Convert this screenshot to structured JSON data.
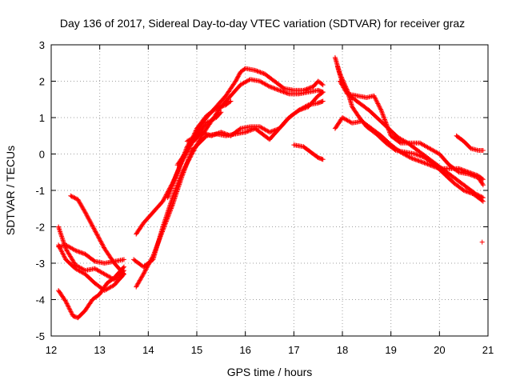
{
  "chart_data": {
    "type": "scatter",
    "title": "Day 136 of 2017, Sidereal Day-to-day VTEC variation (SDTVAR) for receiver graz",
    "xlabel": "GPS time / hours",
    "ylabel": "SDTVAR / TECUs",
    "xlim": [
      12,
      21
    ],
    "ylim": [
      -5,
      3
    ],
    "xticks": [
      12,
      13,
      14,
      15,
      16,
      17,
      18,
      19,
      20,
      21
    ],
    "yticks": [
      -5,
      -4,
      -3,
      -2,
      -1,
      0,
      1,
      2,
      3
    ],
    "grid": true,
    "marker": "+",
    "color": "#ff0000",
    "series": [
      {
        "name": "track-1",
        "points": [
          [
            12.15,
            -3.75
          ],
          [
            12.3,
            -4.05
          ],
          [
            12.45,
            -4.45
          ],
          [
            12.55,
            -4.5
          ],
          [
            12.7,
            -4.3
          ],
          [
            12.85,
            -4.0
          ],
          [
            13.0,
            -3.85
          ],
          [
            13.15,
            -3.55
          ],
          [
            13.3,
            -3.4
          ],
          [
            13.5,
            -3.1
          ]
        ]
      },
      {
        "name": "track-2",
        "points": [
          [
            12.15,
            -2.0
          ],
          [
            12.3,
            -2.6
          ],
          [
            12.5,
            -3.05
          ],
          [
            12.7,
            -3.2
          ],
          [
            12.9,
            -3.15
          ],
          [
            13.1,
            -3.3
          ],
          [
            13.3,
            -3.45
          ],
          [
            13.5,
            -3.2
          ]
        ]
      },
      {
        "name": "track-3",
        "points": [
          [
            12.15,
            -2.55
          ],
          [
            12.3,
            -2.5
          ],
          [
            12.5,
            -2.65
          ],
          [
            12.7,
            -2.75
          ],
          [
            12.9,
            -2.95
          ],
          [
            13.1,
            -3.0
          ],
          [
            13.3,
            -2.95
          ],
          [
            13.5,
            -2.9
          ]
        ]
      },
      {
        "name": "track-4",
        "points": [
          [
            12.15,
            -2.5
          ],
          [
            12.3,
            -2.9
          ],
          [
            12.5,
            -3.15
          ],
          [
            12.7,
            -3.3
          ],
          [
            12.9,
            -3.55
          ],
          [
            13.1,
            -3.75
          ],
          [
            13.3,
            -3.6
          ],
          [
            13.5,
            -3.3
          ]
        ]
      },
      {
        "name": "track-5",
        "points": [
          [
            12.4,
            -1.15
          ],
          [
            12.55,
            -1.25
          ],
          [
            12.7,
            -1.6
          ],
          [
            12.9,
            -2.1
          ],
          [
            13.1,
            -2.6
          ],
          [
            13.3,
            -3.0
          ],
          [
            13.5,
            -3.3
          ]
        ]
      },
      {
        "name": "track-6",
        "points": [
          [
            13.75,
            -3.65
          ],
          [
            13.9,
            -3.3
          ],
          [
            14.1,
            -2.8
          ],
          [
            14.3,
            -2.1
          ],
          [
            14.5,
            -1.4
          ],
          [
            14.7,
            -0.6
          ],
          [
            14.9,
            0.1
          ],
          [
            15.05,
            0.3
          ],
          [
            15.2,
            0.5
          ],
          [
            15.4,
            0.55
          ],
          [
            15.6,
            0.5
          ],
          [
            15.8,
            0.55
          ],
          [
            16.0,
            0.6
          ],
          [
            16.2,
            0.7
          ],
          [
            16.4,
            0.5
          ],
          [
            16.5,
            0.4
          ],
          [
            16.7,
            0.7
          ],
          [
            16.9,
            1.0
          ],
          [
            17.1,
            1.2
          ],
          [
            17.3,
            1.3
          ],
          [
            17.5,
            1.6
          ],
          [
            17.6,
            1.7
          ]
        ]
      },
      {
        "name": "track-7",
        "points": [
          [
            13.7,
            -2.9
          ],
          [
            13.9,
            -3.1
          ],
          [
            14.1,
            -2.9
          ],
          [
            14.3,
            -2.0
          ],
          [
            14.5,
            -1.2
          ],
          [
            14.7,
            -0.5
          ],
          [
            14.9,
            0.0
          ],
          [
            15.1,
            0.5
          ],
          [
            15.3,
            0.9
          ],
          [
            15.5,
            1.3
          ],
          [
            15.7,
            1.6
          ],
          [
            15.9,
            1.9
          ],
          [
            16.1,
            2.05
          ],
          [
            16.3,
            2.0
          ],
          [
            16.5,
            1.85
          ],
          [
            16.7,
            1.75
          ],
          [
            16.9,
            1.65
          ],
          [
            17.1,
            1.65
          ],
          [
            17.3,
            1.7
          ],
          [
            17.5,
            1.75
          ],
          [
            17.6,
            1.7
          ]
        ]
      },
      {
        "name": "track-8",
        "points": [
          [
            13.75,
            -2.2
          ],
          [
            13.9,
            -1.9
          ],
          [
            14.1,
            -1.6
          ],
          [
            14.3,
            -1.3
          ],
          [
            14.5,
            -0.8
          ],
          [
            14.7,
            -0.2
          ],
          [
            14.9,
            0.3
          ],
          [
            15.1,
            0.6
          ],
          [
            15.3,
            0.5
          ],
          [
            15.5,
            0.6
          ],
          [
            15.7,
            0.5
          ],
          [
            15.9,
            0.7
          ],
          [
            16.1,
            0.75
          ],
          [
            16.3,
            0.75
          ],
          [
            16.5,
            0.6
          ],
          [
            16.7,
            0.7
          ],
          [
            16.9,
            1.0
          ],
          [
            17.1,
            1.2
          ],
          [
            17.3,
            1.35
          ],
          [
            17.5,
            1.4
          ],
          [
            17.6,
            1.45
          ]
        ]
      },
      {
        "name": "track-9",
        "points": [
          [
            14.4,
            -1.2
          ],
          [
            14.6,
            -0.5
          ],
          [
            14.8,
            0.2
          ],
          [
            15.0,
            0.6
          ],
          [
            15.2,
            1.0
          ],
          [
            15.4,
            1.3
          ],
          [
            15.6,
            1.6
          ],
          [
            15.8,
            2.0
          ],
          [
            15.9,
            2.25
          ],
          [
            16.0,
            2.35
          ],
          [
            16.2,
            2.3
          ],
          [
            16.4,
            2.2
          ],
          [
            16.6,
            2.0
          ],
          [
            16.8,
            1.8
          ],
          [
            17.0,
            1.75
          ],
          [
            17.2,
            1.75
          ],
          [
            17.4,
            1.85
          ],
          [
            17.5,
            2.0
          ],
          [
            17.6,
            1.9
          ]
        ]
      },
      {
        "name": "track-10",
        "points": [
          [
            14.6,
            -0.3
          ],
          [
            14.8,
            0.1
          ],
          [
            15.0,
            0.7
          ],
          [
            15.2,
            1.05
          ],
          [
            15.4,
            1.25
          ],
          [
            15.6,
            1.35
          ],
          [
            15.7,
            1.45
          ]
        ]
      },
      {
        "name": "track-11",
        "points": [
          [
            14.8,
            0.35
          ],
          [
            15.0,
            0.5
          ],
          [
            15.2,
            0.85
          ],
          [
            15.4,
            1.0
          ],
          [
            15.5,
            1.15
          ]
        ]
      },
      {
        "name": "track-12",
        "points": [
          [
            17.0,
            0.25
          ],
          [
            17.2,
            0.2
          ],
          [
            17.35,
            0.05
          ],
          [
            17.5,
            -0.1
          ],
          [
            17.6,
            -0.15
          ]
        ]
      },
      {
        "name": "track-13",
        "points": [
          [
            17.85,
            2.65
          ],
          [
            17.95,
            2.2
          ],
          [
            18.1,
            1.75
          ],
          [
            18.2,
            1.3
          ],
          [
            18.35,
            1.0
          ],
          [
            18.5,
            0.75
          ],
          [
            18.7,
            0.55
          ],
          [
            18.9,
            0.3
          ],
          [
            19.1,
            0.1
          ],
          [
            19.3,
            0.05
          ],
          [
            19.5,
            0.0
          ],
          [
            19.7,
            -0.1
          ],
          [
            19.9,
            -0.3
          ],
          [
            20.1,
            -0.55
          ],
          [
            20.3,
            -0.8
          ],
          [
            20.5,
            -1.0
          ],
          [
            20.7,
            -1.1
          ],
          [
            20.9,
            -1.3
          ]
        ]
      },
      {
        "name": "track-14",
        "points": [
          [
            17.9,
            2.4
          ],
          [
            18.0,
            1.95
          ],
          [
            18.15,
            1.6
          ],
          [
            18.35,
            1.4
          ],
          [
            18.55,
            1.2
          ],
          [
            18.75,
            0.95
          ],
          [
            18.95,
            0.7
          ],
          [
            19.15,
            0.45
          ],
          [
            19.35,
            0.3
          ],
          [
            19.55,
            0.1
          ],
          [
            19.75,
            -0.1
          ],
          [
            19.95,
            -0.3
          ],
          [
            20.15,
            -0.5
          ],
          [
            20.35,
            -0.7
          ],
          [
            20.55,
            -0.9
          ],
          [
            20.75,
            -1.1
          ],
          [
            20.9,
            -1.2
          ]
        ]
      },
      {
        "name": "track-15",
        "points": [
          [
            17.95,
            2.0
          ],
          [
            18.1,
            1.65
          ],
          [
            18.3,
            1.6
          ],
          [
            18.5,
            1.55
          ],
          [
            18.65,
            1.6
          ],
          [
            18.8,
            1.2
          ],
          [
            19.0,
            0.5
          ],
          [
            19.2,
            0.3
          ],
          [
            19.4,
            0.3
          ],
          [
            19.6,
            0.3
          ],
          [
            19.8,
            0.15
          ],
          [
            20.0,
            0.0
          ],
          [
            20.2,
            -0.3
          ],
          [
            20.4,
            -0.5
          ],
          [
            20.6,
            -0.55
          ],
          [
            20.8,
            -0.65
          ],
          [
            20.9,
            -0.85
          ]
        ]
      },
      {
        "name": "track-16",
        "points": [
          [
            17.85,
            0.7
          ],
          [
            18.0,
            1.0
          ],
          [
            18.2,
            0.85
          ],
          [
            18.4,
            0.9
          ],
          [
            18.6,
            0.7
          ],
          [
            18.8,
            0.5
          ],
          [
            19.0,
            0.25
          ],
          [
            19.2,
            0.05
          ],
          [
            19.4,
            -0.1
          ],
          [
            19.6,
            -0.2
          ],
          [
            19.8,
            -0.3
          ],
          [
            20.0,
            -0.4
          ],
          [
            20.2,
            -0.4
          ],
          [
            20.4,
            -0.4
          ],
          [
            20.6,
            -0.5
          ],
          [
            20.8,
            -0.6
          ],
          [
            20.9,
            -0.7
          ]
        ]
      },
      {
        "name": "track-17",
        "points": [
          [
            20.35,
            0.5
          ],
          [
            20.5,
            0.35
          ],
          [
            20.65,
            0.15
          ],
          [
            20.8,
            0.1
          ],
          [
            20.9,
            0.1
          ]
        ]
      },
      {
        "name": "outlier",
        "points": [
          [
            20.88,
            -2.42
          ]
        ]
      }
    ]
  }
}
